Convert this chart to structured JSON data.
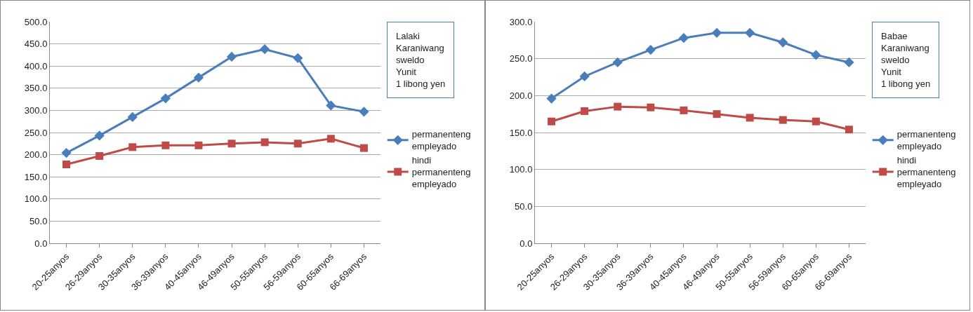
{
  "chart_data": [
    {
      "type": "line",
      "annotations": [
        "Lalaki",
        "Karaniwang sweldo",
        "Yunit",
        "1 libong yen"
      ],
      "categories": [
        "20-25anyos",
        "26-29anyos",
        "30-35anyos",
        "36-39anyos",
        "40-45anyos",
        "46-49anyos",
        "50-55anyos",
        "56-59anyos",
        "60-65anyos",
        "66-69anyos"
      ],
      "series": [
        {
          "name": "permanenteng empleyado",
          "color": "#4a7ebb",
          "marker": "diamond",
          "values": [
            204,
            243,
            285,
            327,
            374,
            421,
            438,
            418,
            311,
            297
          ]
        },
        {
          "name": "hindi permanenteng empleyado",
          "color": "#be4b48",
          "marker": "square",
          "values": [
            178,
            197,
            217,
            221,
            221,
            225,
            228,
            225,
            236,
            215
          ]
        }
      ],
      "ylim": [
        0,
        500
      ],
      "yticks": [
        {
          "value": 0,
          "label": "0.0"
        },
        {
          "value": 50,
          "label": "50.0"
        },
        {
          "value": 100,
          "label": "100.0"
        },
        {
          "value": 150,
          "label": "150.0"
        },
        {
          "value": 200,
          "label": "200.0"
        },
        {
          "value": 250,
          "label": "250.0"
        },
        {
          "value": 300,
          "label": "300.0"
        },
        {
          "value": 350,
          "label": "350.0"
        },
        {
          "value": 400,
          "label": "400.0"
        },
        {
          "value": 450,
          "label": "450.0"
        },
        {
          "value": 500,
          "label": "500.0"
        }
      ],
      "grid": "y",
      "legend": "right",
      "line_style": "solid"
    },
    {
      "type": "line",
      "annotations": [
        "Babae",
        "Karaniwang sweldo",
        "Yunit",
        "1 libong yen"
      ],
      "categories": [
        "20-25anyos",
        "26-29anyos",
        "30-35anyos",
        "36-39anyos",
        "40-45anyos",
        "46-49anyos",
        "50-55anyos",
        "56-59anyos",
        "60-65anyos",
        "66-69anyos"
      ],
      "series": [
        {
          "name": "permanenteng empleyado",
          "color": "#4a7ebb",
          "marker": "diamond",
          "values": [
            196,
            226,
            245,
            262,
            278,
            285,
            285,
            272,
            255,
            245
          ]
        },
        {
          "name": "hindi permanenteng empleyado",
          "color": "#be4b48",
          "marker": "square",
          "values": [
            165,
            179,
            185,
            184,
            180,
            175,
            170,
            167,
            165,
            154
          ]
        }
      ],
      "ylim": [
        0,
        300
      ],
      "yticks": [
        {
          "value": 0,
          "label": "0.0"
        },
        {
          "value": 50,
          "label": "50.0"
        },
        {
          "value": 100,
          "label": "100.0"
        },
        {
          "value": 150,
          "label": "150.0"
        },
        {
          "value": 200,
          "label": "200.0"
        },
        {
          "value": 250,
          "label": "250.0"
        },
        {
          "value": 300,
          "label": "300.0"
        }
      ],
      "grid": "y",
      "legend": "right",
      "line_style": "solid"
    }
  ]
}
